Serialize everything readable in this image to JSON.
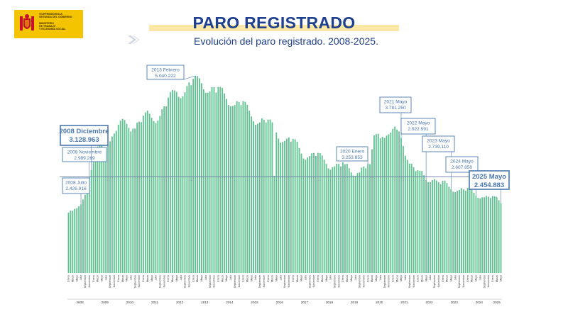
{
  "logo": {
    "lines": [
      "VICEPRESIDENCIA",
      "SEGUNDA DEL GOBIERNO",
      "MINISTERIO",
      "DE TRABAJO",
      "Y ECONOMÍA SOCIAL"
    ]
  },
  "header": {
    "title": "PARO REGISTRADO",
    "subtitle": "Evolución del paro registrado. 2008-2025."
  },
  "colors": {
    "bar": "#5fc190",
    "title": "#1f3f8f",
    "callout": "#4a78b0",
    "band": "#fbe7a6",
    "logo": "#f5c400"
  },
  "chart_data": {
    "type": "bar",
    "start": "2008-01",
    "end": "2025-05",
    "month_labels": [
      "Enero",
      "Febrero",
      "Marzo",
      "Abril",
      "Mayo",
      "Junio",
      "Julio",
      "Agosto",
      "Septiembre",
      "Octubre",
      "Noviembre",
      "Diciembre"
    ],
    "year_labels": [
      "2008",
      "2009",
      "2010",
      "2011",
      "2012",
      "2013",
      "2014",
      "2015",
      "2016",
      "2017",
      "2018",
      "2019",
      "2020",
      "2021",
      "2022",
      "2023",
      "2024",
      "2025"
    ],
    "reference_line": 2989269,
    "annual": {
      "2008": [
        2261000,
        2300000,
        2300975,
        2338517,
        2352144,
        2390416,
        2426916,
        2530001,
        2625368,
        2818026,
        2989269,
        3128963
      ],
      "2009": [
        3327801,
        3481859,
        3605402,
        3644041,
        3620139,
        3564889,
        3544105,
        3629080,
        3709447,
        3808353,
        3868946,
        3923603
      ],
      "2010": [
        4048493,
        4130625,
        4166613,
        4142425,
        4066202,
        3982368,
        3908925,
        3969661,
        3972054,
        4085976,
        4110294,
        4100073
      ],
      "2011": [
        4231003,
        4299263,
        4333669,
        4269360,
        4189659,
        4121801,
        4080263,
        4130927,
        4226744,
        4360926,
        4420462,
        4422359
      ],
      "2012": [
        4599829,
        4712098,
        4750867,
        4744235,
        4714122,
        4615269,
        4587455,
        4625634,
        4705279,
        4833521,
        4907817,
        4848723
      ],
      "2013": [
        4980778,
        5040222,
        5035243,
        4989193,
        4890928,
        4763680,
        4698814,
        4698783,
        4724355,
        4811383,
        4808908,
        4701338
      ],
      "2014": [
        4814435,
        4812486,
        4795866,
        4684301,
        4572385,
        4449701,
        4419860,
        4427930,
        4447650,
        4526804,
        4512153,
        4447711
      ],
      "2015": [
        4525691,
        4512816,
        4451939,
        4333016,
        4215031,
        4120304,
        4046276,
        4067955,
        4094042,
        4176369,
        4149298,
        4093508
      ],
      "2016": [
        4150710,
        4152986,
        4094770,
        3011433,
        3891403,
        3767054,
        3683061,
        3697496,
        3720297,
        3764982,
        3789823,
        3702974
      ],
      "2017": [
        3760231,
        3750876,
        3702317,
        3573036,
        3461128,
        3362811,
        3335924,
        3382324,
        3410182,
        3467026,
        3474281,
        3412781
      ],
      "2018": [
        3476528,
        3470248,
        3422551,
        3335868,
        3252130,
        3162162,
        3135021,
        3182068,
        3202509,
        3254139,
        3252867,
        3202297
      ],
      "2019": [
        3285761,
        3246047,
        3255084,
        3163566,
        3079491,
        3015686,
        3011433,
        3065804,
        3079711,
        3177659,
        3198184,
        3163605
      ],
      "2020": [
        3253853,
        3246047,
        3548312,
        3831203,
        3857776,
        3862883,
        3773034,
        3802814,
        3776485,
        3826043,
        3851312,
        3888137
      ],
      "2021": [
        3964353,
        4008789,
        3949640,
        3910628,
        3781250,
        3614339,
        3416498,
        3333915,
        3257802,
        3257068,
        3182687,
        3105905
      ],
      "2022": [
        3123078,
        3111684,
        3108763,
        3022503,
        2922991,
        2880582,
        2883812,
        2924240,
        2941919,
        2914892,
        2881380,
        2837653
      ],
      "2023": [
        2908397,
        2911015,
        2862260,
        2788370,
        2739110,
        2688842,
        2677874,
        2702700,
        2722468,
        2759404,
        2734831,
        2707456
      ],
      "2024": [
        2767860,
        2760408,
        2727003,
        2666500,
        2607850,
        2561067,
        2550237,
        2572121,
        2575285,
        2602054,
        2586018,
        2560718
      ],
      "2025": [
        2599443,
        2593449,
        2580138,
        2512718,
        2454883
      ]
    },
    "ylim": [
      0,
      5500000
    ],
    "annotations": [
      {
        "label": "2008 Julio",
        "value": "2.426.916",
        "year": 2008,
        "month": 7
      },
      {
        "label": "2008 Noviembre",
        "value": "2.989.269",
        "year": 2008,
        "month": 11
      },
      {
        "label": "2008 Diciembre",
        "value": "3.128.963",
        "year": 2008,
        "month": 12
      },
      {
        "label": "2013 Febrero",
        "value": "5.040.222",
        "year": 2013,
        "month": 2
      },
      {
        "label": "2020 Enero",
        "value": "3.253.853",
        "year": 2020,
        "month": 1
      },
      {
        "label": "2021 Mayo",
        "value": "3.781.250",
        "year": 2021,
        "month": 5
      },
      {
        "label": "2022 Mayo",
        "value": "2.922.991",
        "year": 2022,
        "month": 5
      },
      {
        "label": "2023 Mayo",
        "value": "2.739.110",
        "year": 2023,
        "month": 5
      },
      {
        "label": "2024 Mayo",
        "value": "2.607.850",
        "year": 2024,
        "month": 5
      },
      {
        "label": "2025 Mayo",
        "value": "2.454.883",
        "year": 2025,
        "month": 5
      }
    ]
  }
}
